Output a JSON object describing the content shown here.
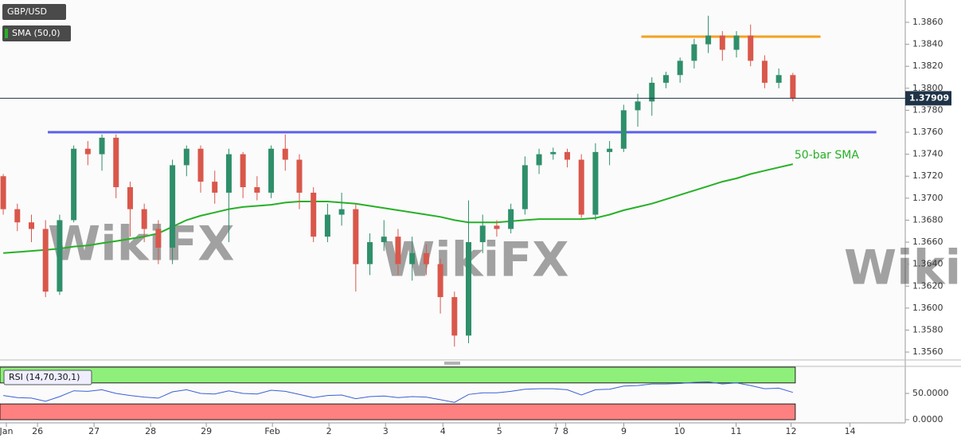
{
  "chart_data": [
    {
      "type": "candlestick",
      "title": "GBP/USD",
      "annotation": "50-bar SMA",
      "watermark": "WikiFX",
      "xlim": [
        -0.23,
        63.97
      ],
      "xticks": [
        {
          "value": 0.22,
          "label": "Jan"
        },
        {
          "value": 2.43,
          "label": "26"
        },
        {
          "value": 6.44,
          "label": "27"
        },
        {
          "value": 10.45,
          "label": "28"
        },
        {
          "value": 14.4,
          "label": "29"
        },
        {
          "value": 19.09,
          "label": "Feb"
        },
        {
          "value": 23.1,
          "label": "2"
        },
        {
          "value": 27.11,
          "label": "3"
        },
        {
          "value": 31.18,
          "label": "4"
        },
        {
          "value": 35.19,
          "label": "5"
        },
        {
          "value": 39.2,
          "label": "7"
        },
        {
          "value": 39.88,
          "label": "8"
        },
        {
          "value": 44.01,
          "label": "9"
        },
        {
          "value": 47.96,
          "label": "10"
        },
        {
          "value": 51.97,
          "label": "11"
        },
        {
          "value": 55.87,
          "label": "12"
        },
        {
          "value": 60.05,
          "label": "14"
        }
      ],
      "ylim": [
        1.35528,
        1.38803
      ],
      "yticks": [
        {
          "value": 1.356,
          "label": "1.3560"
        },
        {
          "value": 1.358,
          "label": "1.3580"
        },
        {
          "value": 1.36,
          "label": "1.3600"
        },
        {
          "value": 1.362,
          "label": "1.3620"
        },
        {
          "value": 1.364,
          "label": "1.3640"
        },
        {
          "value": 1.366,
          "label": "1.3660"
        },
        {
          "value": 1.368,
          "label": "1.3680"
        },
        {
          "value": 1.37,
          "label": "1.3700"
        },
        {
          "value": 1.372,
          "label": "1.3720"
        },
        {
          "value": 1.374,
          "label": "1.3740"
        },
        {
          "value": 1.376,
          "label": "1.3760"
        },
        {
          "value": 1.378,
          "label": "1.3780"
        },
        {
          "value": 1.38,
          "label": "1.3800"
        },
        {
          "value": 1.382,
          "label": "1.3820"
        },
        {
          "value": 1.384,
          "label": "1.3840"
        },
        {
          "value": 1.386,
          "label": "1.3860"
        }
      ],
      "up_color": "#2f8f6a",
      "down_color": "#d9574b",
      "open": [
        1.372,
        1.369,
        1.3678,
        1.3672,
        1.3615,
        1.368,
        1.3745,
        1.374,
        1.3755,
        1.371,
        1.369,
        1.3672,
        1.3655,
        1.373,
        1.3745,
        1.3715,
        1.3705,
        1.374,
        1.371,
        1.3705,
        1.3745,
        1.3735,
        1.3705,
        1.3665,
        1.3685,
        1.369,
        1.364,
        1.366,
        1.3665,
        1.364,
        1.365,
        1.364,
        1.361,
        1.3575,
        1.366,
        1.3675,
        1.3672,
        1.369,
        1.373,
        1.374,
        1.3742,
        1.3735,
        1.3685,
        1.3742,
        1.3745,
        1.378,
        1.3788,
        1.3805,
        1.3812,
        1.3825,
        1.384,
        1.3848,
        1.3835,
        1.3848,
        1.3825,
        1.3805,
        1.3812
      ],
      "high": [
        1.3722,
        1.3695,
        1.3685,
        1.368,
        1.3685,
        1.3748,
        1.3752,
        1.3758,
        1.3758,
        1.3715,
        1.3695,
        1.368,
        1.3735,
        1.3748,
        1.3748,
        1.3725,
        1.3745,
        1.3742,
        1.372,
        1.3748,
        1.3758,
        1.374,
        1.371,
        1.3695,
        1.3705,
        1.3695,
        1.3668,
        1.368,
        1.3672,
        1.3665,
        1.3658,
        1.3645,
        1.3615,
        1.3698,
        1.3685,
        1.368,
        1.3695,
        1.3738,
        1.3745,
        1.3746,
        1.3745,
        1.374,
        1.375,
        1.3752,
        1.3785,
        1.3795,
        1.381,
        1.3815,
        1.3828,
        1.3845,
        1.3866,
        1.3852,
        1.3852,
        1.3858,
        1.383,
        1.3818,
        1.3814
      ],
      "low": [
        1.3685,
        1.367,
        1.366,
        1.361,
        1.3612,
        1.3678,
        1.373,
        1.3725,
        1.37,
        1.3665,
        1.366,
        1.364,
        1.364,
        1.372,
        1.3705,
        1.3695,
        1.366,
        1.37,
        1.3698,
        1.37,
        1.3725,
        1.369,
        1.366,
        1.366,
        1.3675,
        1.3615,
        1.363,
        1.3652,
        1.363,
        1.3625,
        1.363,
        1.3595,
        1.3565,
        1.3568,
        1.365,
        1.3665,
        1.3668,
        1.3685,
        1.3722,
        1.3735,
        1.3728,
        1.3682,
        1.368,
        1.373,
        1.3742,
        1.3765,
        1.3775,
        1.38,
        1.3805,
        1.3818,
        1.3832,
        1.3825,
        1.3828,
        1.382,
        1.38,
        1.38,
        1.3788
      ],
      "close": [
        1.369,
        1.3678,
        1.3672,
        1.3615,
        1.368,
        1.3745,
        1.374,
        1.3755,
        1.371,
        1.369,
        1.3672,
        1.3655,
        1.373,
        1.3745,
        1.3715,
        1.3705,
        1.374,
        1.371,
        1.3705,
        1.3745,
        1.3735,
        1.3705,
        1.3665,
        1.3685,
        1.369,
        1.364,
        1.366,
        1.3665,
        1.364,
        1.365,
        1.364,
        1.361,
        1.3575,
        1.366,
        1.3675,
        1.3672,
        1.369,
        1.373,
        1.374,
        1.3742,
        1.3735,
        1.3685,
        1.3742,
        1.3745,
        1.378,
        1.3788,
        1.3805,
        1.3812,
        1.3825,
        1.384,
        1.3848,
        1.3835,
        1.3848,
        1.3825,
        1.3805,
        1.3812,
        1.37909
      ],
      "series": [
        {
          "name": "SMA (50,0)",
          "color": "#27b027",
          "values": [
            1.365,
            1.3651,
            1.3652,
            1.3653,
            1.3654,
            1.3656,
            1.3657,
            1.3659,
            1.3661,
            1.3663,
            1.3665,
            1.3668,
            1.3674,
            1.368,
            1.3684,
            1.3687,
            1.369,
            1.3692,
            1.3693,
            1.3694,
            1.3696,
            1.3697,
            1.3697,
            1.3697,
            1.3696,
            1.3695,
            1.3693,
            1.3691,
            1.3689,
            1.3687,
            1.3685,
            1.3683,
            1.368,
            1.3678,
            1.3678,
            1.3678,
            1.3679,
            1.368,
            1.3681,
            1.3681,
            1.3681,
            1.3681,
            1.3682,
            1.3685,
            1.3689,
            1.3692,
            1.3695,
            1.3699,
            1.3703,
            1.3707,
            1.3711,
            1.3715,
            1.3718,
            1.3722,
            1.3725,
            1.3728,
            1.3731
          ]
        }
      ],
      "levels": [
        {
          "value": 1.376,
          "start": 3.16,
          "end": 61.92,
          "color": "#5b5ff0"
        },
        {
          "value": 1.3847,
          "start": 45.25,
          "end": 57.96,
          "color": "#f5a11f"
        }
      ],
      "last": 1.37909
    },
    {
      "type": "line",
      "title": "RSI (14,70,30,1)",
      "xlim": [
        -0.23,
        63.97
      ],
      "ylim": [
        0,
        100
      ],
      "yticks": [
        {
          "value": 50,
          "label": "50.0000"
        },
        {
          "value": 0,
          "label": "0.0000"
        }
      ],
      "bands": [
        {
          "from": 70,
          "to": 100,
          "color": "#8ef07a"
        },
        {
          "from": 0,
          "to": 30,
          "color": "#ff8080"
        }
      ],
      "series": [
        {
          "color": "#3b5fd6",
          "values": [
            46,
            42,
            41,
            35,
            44,
            55,
            54,
            57,
            50,
            46,
            43,
            41,
            53,
            57,
            50,
            49,
            55,
            50,
            49,
            56,
            54,
            48,
            42,
            46,
            47,
            40,
            44,
            45,
            42,
            44,
            43,
            38,
            33,
            48,
            51,
            51,
            54,
            58,
            59,
            59,
            57,
            47,
            57,
            58,
            64,
            65,
            68,
            68,
            69,
            71,
            72,
            68,
            70,
            65,
            59,
            60,
            52
          ]
        }
      ]
    }
  ]
}
